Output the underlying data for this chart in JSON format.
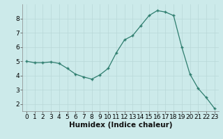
{
  "x": [
    0,
    1,
    2,
    3,
    4,
    5,
    6,
    7,
    8,
    9,
    10,
    11,
    12,
    13,
    14,
    15,
    16,
    17,
    18,
    19,
    20,
    21,
    22,
    23
  ],
  "y": [
    5.0,
    4.9,
    4.9,
    4.95,
    4.85,
    4.5,
    4.1,
    3.9,
    3.75,
    4.05,
    4.5,
    5.6,
    6.5,
    6.8,
    7.5,
    8.2,
    8.55,
    8.45,
    8.2,
    6.0,
    4.1,
    3.1,
    2.45,
    1.7
  ],
  "xlabel": "Humidex (Indice chaleur)",
  "xlim": [
    -0.5,
    23.5
  ],
  "ylim": [
    1.5,
    9.0
  ],
  "yticks": [
    2,
    3,
    4,
    5,
    6,
    7,
    8
  ],
  "xticks": [
    0,
    1,
    2,
    3,
    4,
    5,
    6,
    7,
    8,
    9,
    10,
    11,
    12,
    13,
    14,
    15,
    16,
    17,
    18,
    19,
    20,
    21,
    22,
    23
  ],
  "line_color": "#2e7d6e",
  "marker": "+",
  "bg_color": "#cceaea",
  "grid_color": "#b8d8d8",
  "tick_label_fontsize": 6.5,
  "xlabel_fontsize": 7.5
}
